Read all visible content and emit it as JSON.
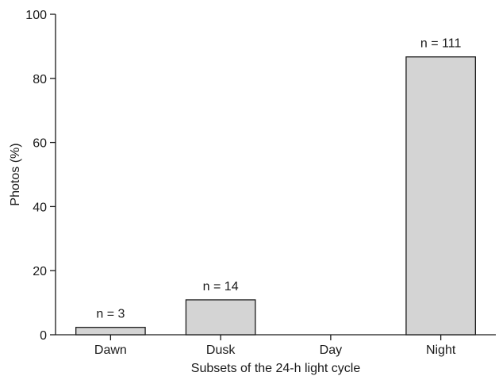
{
  "chart_data": {
    "type": "bar",
    "title": "",
    "xlabel": "Subsets of the 24-h light cycle",
    "ylabel": "Photos (%)",
    "ylim": [
      0,
      100
    ],
    "yticks": [
      "0",
      "20",
      "40",
      "60",
      "80",
      "100"
    ],
    "categories": [
      "Dawn",
      "Dusk",
      "Day",
      "Night"
    ],
    "values": [
      2.3,
      10.9,
      0,
      86.7
    ],
    "data_labels": [
      "n = 3",
      "n = 14",
      "",
      "n = 111"
    ],
    "bar_color": "#d4d4d4",
    "grid": false,
    "legend": "none"
  }
}
